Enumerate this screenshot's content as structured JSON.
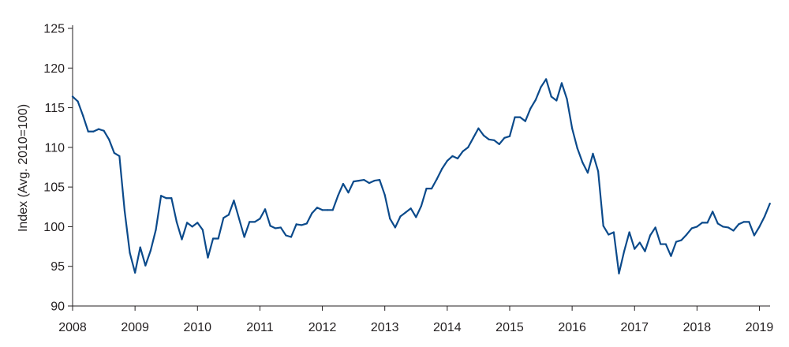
{
  "chart_data": {
    "type": "line",
    "title": "",
    "xlabel": "",
    "ylabel": "Index (Avg. 2010=100)",
    "ylim": [
      90,
      125
    ],
    "xlim": [
      2008.0,
      2019.17
    ],
    "y_ticks": [
      "90",
      "95",
      "100",
      "105",
      "110",
      "115",
      "120",
      "125"
    ],
    "x_ticks": [
      "2008",
      "2009",
      "2010",
      "2011",
      "2012",
      "2013",
      "2014",
      "2015",
      "2016",
      "2017",
      "2018",
      "2019"
    ],
    "grid": false,
    "legend": "none",
    "line_color": "#0b4a8b",
    "axis_color": "#231f20",
    "series": [
      {
        "x_start": "2008-01",
        "frequency": "monthly",
        "values": [
          116.4,
          115.8,
          114.0,
          112.0,
          112.0,
          112.3,
          112.1,
          111.0,
          109.3,
          108.9,
          102.0,
          96.7,
          94.2,
          97.4,
          95.1,
          97.0,
          99.6,
          103.9,
          103.6,
          103.6,
          100.6,
          98.4,
          100.5,
          100.0,
          100.5,
          99.6,
          96.1,
          98.5,
          98.5,
          101.1,
          101.5,
          103.3,
          101.0,
          98.7,
          100.6,
          100.6,
          101.0,
          102.2,
          100.1,
          99.8,
          99.9,
          98.9,
          98.7,
          100.3,
          100.2,
          100.4,
          101.7,
          102.4,
          102.1,
          102.1,
          102.1,
          103.9,
          105.4,
          104.3,
          105.7,
          105.8,
          105.9,
          105.5,
          105.8,
          105.9,
          104.0,
          101.0,
          99.9,
          101.3,
          101.8,
          102.3,
          101.2,
          102.6,
          104.8,
          104.8,
          106.0,
          107.3,
          108.3,
          108.9,
          108.6,
          109.5,
          110.0,
          111.2,
          112.4,
          111.5,
          111.0,
          110.9,
          110.4,
          111.2,
          111.4,
          113.8,
          113.8,
          113.3,
          114.9,
          116.0,
          117.6,
          118.6,
          116.4,
          115.9,
          118.1,
          116.1,
          112.4,
          109.9,
          108.1,
          106.8,
          109.2,
          107.0,
          100.1,
          99.0,
          99.3,
          94.1,
          96.9,
          99.3,
          97.2,
          98.0,
          96.9,
          98.9,
          99.9,
          97.8,
          97.8,
          96.3,
          98.1,
          98.3,
          99.0,
          99.8,
          100.0,
          100.5,
          100.5,
          101.9,
          100.4,
          100.0,
          99.9,
          99.5,
          100.3,
          100.6,
          100.6,
          98.9,
          100.0,
          101.3,
          102.9
        ]
      }
    ]
  }
}
